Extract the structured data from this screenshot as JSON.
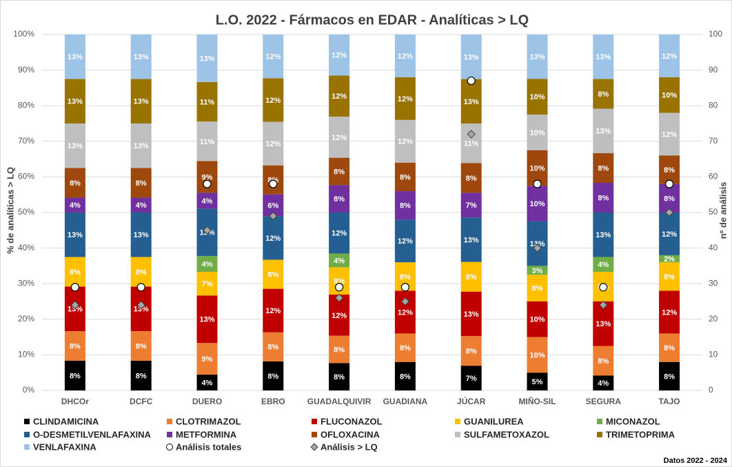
{
  "chart_data": {
    "type": "stacked_bar",
    "title": "L.O. 2022 - Fármacos en EDAR - Analíticas > LQ",
    "y_label": "% de analíticas > LQ",
    "y2_label": "nº de análisis",
    "footer": "Datos 2022 - 2024",
    "categories": [
      "DHCOr",
      "DCFC",
      "DUERO",
      "EBRO",
      "GUADALQUIVIR",
      "GUADIANA",
      "JÚCAR",
      "MIÑO-SIL",
      "SEGURA",
      "TAJO"
    ],
    "ylim": [
      0,
      100
    ],
    "yticks": [
      {
        "value": 0,
        "label": "0%"
      },
      {
        "value": 10,
        "label": "10%"
      },
      {
        "value": 20,
        "label": "20%"
      },
      {
        "value": 30,
        "label": "30%"
      },
      {
        "value": 40,
        "label": "40%"
      },
      {
        "value": 50,
        "label": "50%"
      },
      {
        "value": 60,
        "label": "60%"
      },
      {
        "value": 70,
        "label": "70%"
      },
      {
        "value": 80,
        "label": "80%"
      },
      {
        "value": 90,
        "label": "90%"
      },
      {
        "value": 100,
        "label": "100%"
      }
    ],
    "y2lim": [
      0,
      100
    ],
    "y2ticks": [
      0,
      10,
      20,
      30,
      40,
      50,
      60,
      70,
      80,
      90,
      100
    ],
    "grid": true,
    "series": [
      {
        "name": "CLINDAMICINA",
        "color": "#000000",
        "values": [
          8.33,
          8.33,
          4.44,
          8.16,
          7.69,
          8,
          6.94,
          5,
          4.17,
          8
        ],
        "value_labels": [
          "8%",
          "8%",
          "4%",
          "8%",
          "8%",
          "8%",
          "7%",
          "5%",
          "4%",
          "8%"
        ]
      },
      {
        "name": "CLOTRIMAZOL",
        "color": "#ed7d31",
        "values": [
          8.33,
          8.33,
          8.89,
          8.16,
          7.69,
          8,
          8.33,
          10,
          8.33,
          8
        ],
        "value_labels": [
          "8%",
          "8%",
          "9%",
          "8%",
          "8%",
          "8%",
          "8%",
          "10%",
          "8%",
          "8%"
        ]
      },
      {
        "name": "FLUCONAZOL",
        "color": "#c00000",
        "values": [
          12.5,
          12.5,
          13.33,
          12.24,
          11.54,
          12,
          12.5,
          10,
          12.5,
          12
        ],
        "value_labels": [
          "13%",
          "13%",
          "13%",
          "12%",
          "12%",
          "12%",
          "13%",
          "10%",
          "13%",
          "12%"
        ]
      },
      {
        "name": "GUANILUREA",
        "color": "#ffc000",
        "values": [
          8.33,
          8.33,
          6.67,
          8.16,
          7.69,
          8,
          8.33,
          7.5,
          8.33,
          8
        ],
        "value_labels": [
          "8%",
          "8%",
          "7%",
          "8%",
          "8%",
          "8%",
          "8%",
          "8%",
          "8%",
          "8%"
        ]
      },
      {
        "name": "MICONAZOL",
        "color": "#70ad47",
        "values": [
          0,
          0,
          4.44,
          0,
          3.85,
          0,
          0,
          2.5,
          4.17,
          2
        ],
        "value_labels": [
          null,
          null,
          "4%",
          null,
          "4%",
          null,
          null,
          "3%",
          "4%",
          "2%"
        ]
      },
      {
        "name": "O-DESMETILVENLAFAXINA",
        "color": "#255e91",
        "values": [
          12.5,
          12.5,
          13.33,
          12.24,
          11.54,
          12,
          12.5,
          12.5,
          12.5,
          12
        ],
        "value_labels": [
          "13%",
          "13%",
          "13%",
          "12%",
          "12%",
          "12%",
          "13%",
          "13%",
          "13%",
          "12%"
        ]
      },
      {
        "name": "METFORMINA",
        "color": "#7030a0",
        "values": [
          4.17,
          4.17,
          4.44,
          6.12,
          7.69,
          8,
          6.94,
          10,
          8.33,
          8
        ],
        "value_labels": [
          "4%",
          "4%",
          "4%",
          "6%",
          "8%",
          "8%",
          "7%",
          "10%",
          "8%",
          "8%"
        ]
      },
      {
        "name": "OFLOXACINA",
        "color": "#9e480e",
        "values": [
          8.33,
          8.33,
          8.89,
          8.16,
          7.69,
          8,
          8.33,
          10,
          8.33,
          8
        ],
        "value_labels": [
          "8%",
          "8%",
          "9%",
          "8%",
          "8%",
          "8%",
          "8%",
          "10%",
          "8%",
          "8%"
        ]
      },
      {
        "name": "SULFAMETOXAZOL",
        "color": "#bfbfbf",
        "values": [
          12.5,
          12.5,
          11.11,
          12.24,
          11.54,
          12,
          11.11,
          10,
          12.5,
          12
        ],
        "value_labels": [
          "13%",
          "13%",
          "11%",
          "12%",
          "12%",
          "12%",
          "11%",
          "10%",
          "13%",
          "12%"
        ]
      },
      {
        "name": "TRIMETOPRIMA",
        "color": "#997300",
        "values": [
          12.5,
          12.5,
          11.11,
          12.24,
          11.54,
          12,
          12.5,
          10,
          8.33,
          10
        ],
        "value_labels": [
          "13%",
          "13%",
          "11%",
          "12%",
          "12%",
          "12%",
          "13%",
          "10%",
          "8%",
          "10%"
        ]
      },
      {
        "name": "VENLAFAXINA",
        "color": "#9dc3e6",
        "values": [
          12.5,
          12.5,
          13.33,
          12.24,
          11.54,
          12,
          12.5,
          12.5,
          12.5,
          12
        ],
        "value_labels": [
          "13%",
          "13%",
          "13%",
          "12%",
          "12%",
          "12%",
          "13%",
          "13%",
          "13%",
          "12%"
        ]
      },
      {
        "name": "Análisis totales",
        "axis": "y2",
        "marker": "circle",
        "color": "#ffffff",
        "values": [
          29,
          29,
          58,
          58,
          29,
          29,
          87,
          58,
          29,
          58
        ]
      },
      {
        "name": "Análisis > LQ",
        "axis": "y2",
        "marker": "diamond",
        "color": "#a6a6a6",
        "values": [
          24,
          24,
          45,
          49,
          26,
          25,
          72,
          40,
          24,
          50
        ]
      }
    ]
  }
}
